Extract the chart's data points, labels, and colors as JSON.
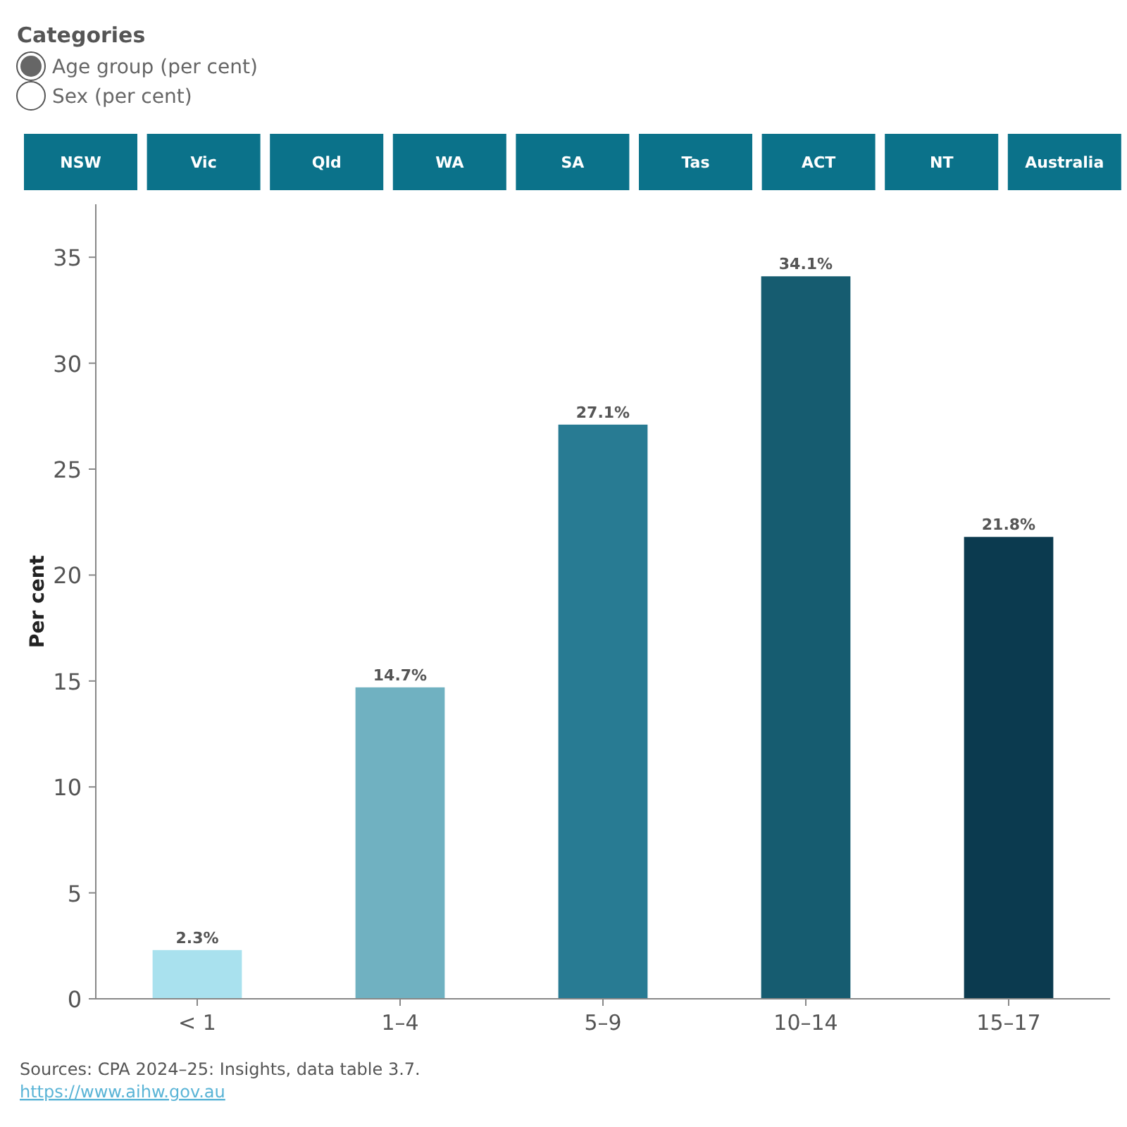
{
  "chart_data": {
    "type": "bar",
    "ylabel": "Per cent",
    "categories": [
      "< 1",
      "1–4",
      "5–9",
      "10–14",
      "15–17"
    ],
    "values": [
      2.3,
      14.7,
      27.1,
      34.1,
      21.8
    ],
    "colors": [
      "#a9e1ee",
      "#70b1c1",
      "#287b93",
      "#165c70",
      "#0b3a4f"
    ],
    "value_labels": [
      "2.3%",
      "14.7%",
      "27.1%",
      "34.1%",
      "21.8%"
    ],
    "ylim": [
      0,
      37.5
    ],
    "yticks": [
      0,
      5,
      10,
      15,
      20,
      25,
      30,
      35
    ],
    "grid": false,
    "annotations": [
      "Categories",
      "Age group (per cent)",
      "Sex (per cent)",
      "NSW",
      "Vic",
      "Qld",
      "WA",
      "SA",
      "Tas",
      "ACT",
      "NT",
      "Australia",
      "Sources: CPA 2024–25: Insights, data table 3.7.",
      "https://www.aihw.gov.au"
    ]
  }
}
